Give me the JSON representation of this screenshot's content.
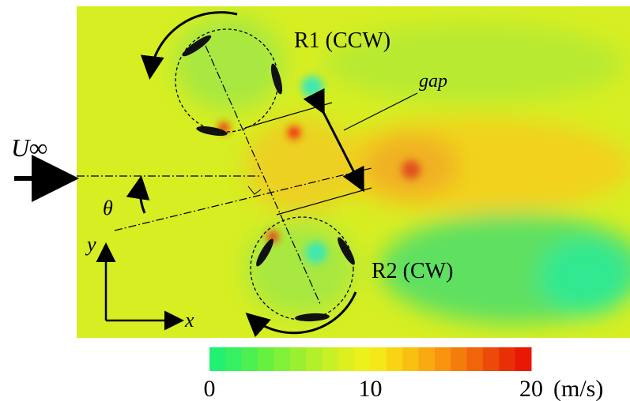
{
  "labels": {
    "rotor1": "R1 (CCW)",
    "rotor2": "R2 (CW)",
    "gap": "gap",
    "freestream": "U∞",
    "angle": "θ",
    "y_axis": "y",
    "x_axis": "x"
  },
  "colorbar": {
    "range": [
      0,
      20
    ],
    "ticks": [
      0,
      10,
      20
    ],
    "unit": "(m/s)"
  }
}
